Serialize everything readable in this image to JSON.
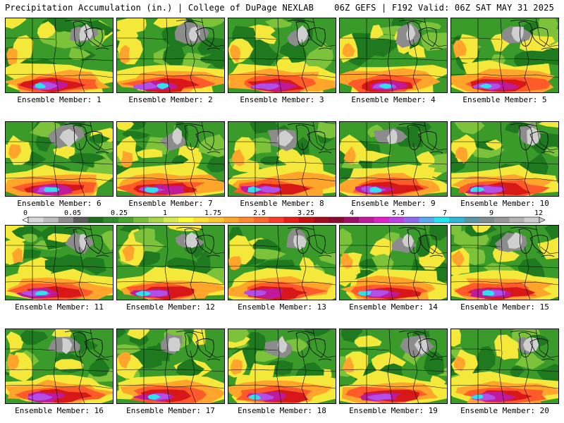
{
  "header": {
    "title_left": "Precipitation Accumulation (in.) | College of DuPage NEXLAB",
    "title_right": "06Z GEFS | F192 Valid: 06Z SAT MAY 31 2025"
  },
  "members": [
    "Ensemble Member: 1",
    "Ensemble Member: 2",
    "Ensemble Member: 3",
    "Ensemble Member: 4",
    "Ensemble Member: 5",
    "Ensemble Member: 6",
    "Ensemble Member: 7",
    "Ensemble Member: 8",
    "Ensemble Member: 9",
    "Ensemble Member: 10",
    "Ensemble Member: 11",
    "Ensemble Member: 12",
    "Ensemble Member: 13",
    "Ensemble Member: 14",
    "Ensemble Member: 15",
    "Ensemble Member: 16",
    "Ensemble Member: 17",
    "Ensemble Member: 18",
    "Ensemble Member: 19",
    "Ensemble Member: 20"
  ],
  "scale": {
    "labels": [
      "0",
      "0.05",
      "0.25",
      "1",
      "1.75",
      "2.5",
      "3.25",
      "4",
      "5.5",
      "7",
      "9",
      "12"
    ],
    "colors": [
      "#d9d9d9",
      "#bdbdbd",
      "#8f8f8f",
      "#5d5d5d",
      "#1f6e1f",
      "#2e8b2e",
      "#4aa52e",
      "#79c13a",
      "#a9d845",
      "#d6ec4e",
      "#ffff33",
      "#ffe033",
      "#ffc832",
      "#ffa62b",
      "#ff8a2a",
      "#ff6a2a",
      "#ff3c2a",
      "#ea1c1c",
      "#c81010",
      "#a00b1f",
      "#8b0a2f",
      "#a0106a",
      "#c01a9a",
      "#e020c8",
      "#c040e8",
      "#8c6af2",
      "#5aa8f0",
      "#20e6f0",
      "#30b8d8",
      "#5a98a8",
      "#7f8f8f",
      "#9a9a9a",
      "#b4b4b4",
      "#cecece"
    ]
  },
  "colors": {
    "grey_light": "#cfcfcf",
    "grey_dark": "#8c8c8c",
    "green_dark": "#1f7a1f",
    "green": "#3a9a2a",
    "green_light": "#7cc23a",
    "yellow": "#f4e83a",
    "orange": "#ffa52b",
    "red_orange": "#ff5a2a",
    "red": "#d81818",
    "magenta": "#c01a9a",
    "purple": "#b050e8",
    "cyan": "#30e0ec",
    "boundary_line": "#000000"
  }
}
